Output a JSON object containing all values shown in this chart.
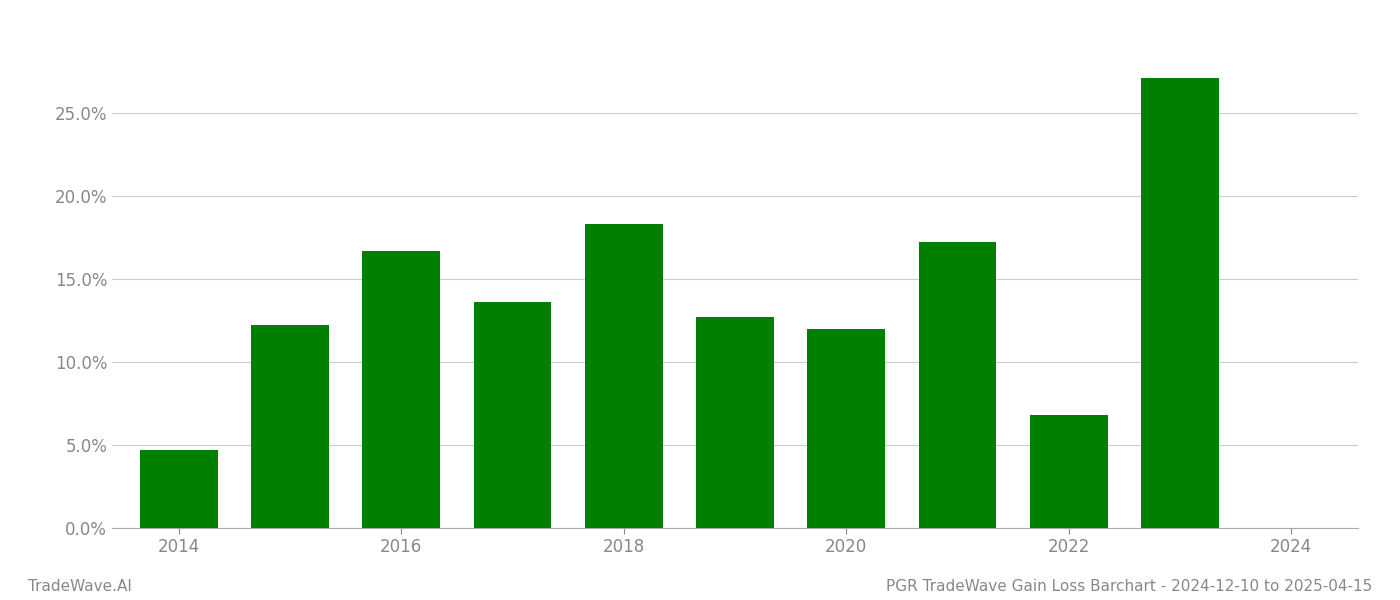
{
  "years": [
    2014,
    2015,
    2016,
    2017,
    2018,
    2019,
    2020,
    2021,
    2022,
    2023
  ],
  "values": [
    0.047,
    0.122,
    0.167,
    0.136,
    0.183,
    0.127,
    0.12,
    0.172,
    0.068,
    0.271
  ],
  "bar_color": "#008000",
  "background_color": "#ffffff",
  "grid_color": "#cccccc",
  "axis_color": "#aaaaaa",
  "tick_label_color": "#888888",
  "ylim": [
    0,
    0.3
  ],
  "yticks": [
    0.0,
    0.05,
    0.1,
    0.15,
    0.2,
    0.25
  ],
  "xtick_years": [
    2014,
    2016,
    2018,
    2020,
    2022,
    2024
  ],
  "footer_left": "TradeWave.AI",
  "footer_right": "PGR TradeWave Gain Loss Barchart - 2024-12-10 to 2025-04-15",
  "footer_color": "#888888",
  "footer_fontsize": 11,
  "tick_fontsize": 12,
  "bar_width": 0.7
}
